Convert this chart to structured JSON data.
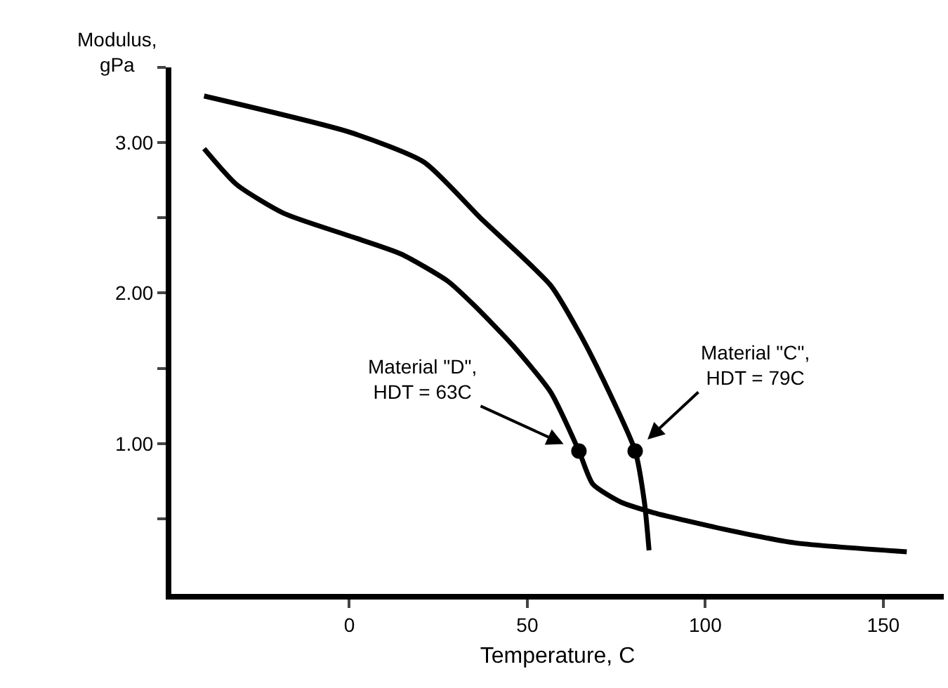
{
  "chart_data": {
    "type": "line",
    "xlabel": "Temperature, C",
    "ylabel": "Modulus,\ngPa",
    "xlim": [
      -50,
      167
    ],
    "xticks": [
      0,
      50,
      100,
      150
    ],
    "ylim": [
      0,
      3.5
    ],
    "yticks": [
      {
        "value": 0.5,
        "label": null
      },
      {
        "value": 1,
        "label": "1.00"
      },
      {
        "value": 1.5,
        "label": null
      },
      {
        "value": 2,
        "label": "2.00"
      },
      {
        "value": 2.5,
        "label": null
      },
      {
        "value": 3,
        "label": "3.00"
      },
      {
        "value": 3.5,
        "label": null
      }
    ],
    "grid": false,
    "line_style": "solid",
    "series": [
      {
        "type": "line",
        "color": "#000000",
        "marker": "none",
        "x": [
          -40.8,
          0,
          21,
          36.8,
          56.6,
          64.5,
          71,
          80.3,
          82.9,
          84.2
        ],
        "values": [
          3.31,
          3.07,
          2.87,
          2.5,
          2.05,
          1.74,
          1.44,
          0.95,
          0.61,
          0.29
        ]
      },
      {
        "type": "line",
        "color": "#000000",
        "marker": "none",
        "x": [
          -40.8,
          -31.6,
          -18.4,
          0,
          14.5,
          27.6,
          35,
          46,
          56.6,
          64.5,
          68.4,
          76.3,
          85.5,
          105.3,
          125,
          156.6
        ],
        "values": [
          2.96,
          2.72,
          2.53,
          2.38,
          2.26,
          2.08,
          1.92,
          1.65,
          1.34,
          0.95,
          0.73,
          0.61,
          0.54,
          0.43,
          0.34,
          0.28
        ]
      },
      {
        "type": "scatter",
        "color": "#000000",
        "marker": "circle",
        "x": [
          64.5,
          80.3
        ],
        "values": [
          0.95,
          0.95
        ]
      }
    ],
    "annotations": [
      {
        "text": "Material \"D\",\nHDT = 63C",
        "x": 64.5,
        "y": 0.95
      },
      {
        "text": "Material \"C\",\nHDT = 79C",
        "x": 80.3,
        "y": 0.95
      }
    ]
  }
}
